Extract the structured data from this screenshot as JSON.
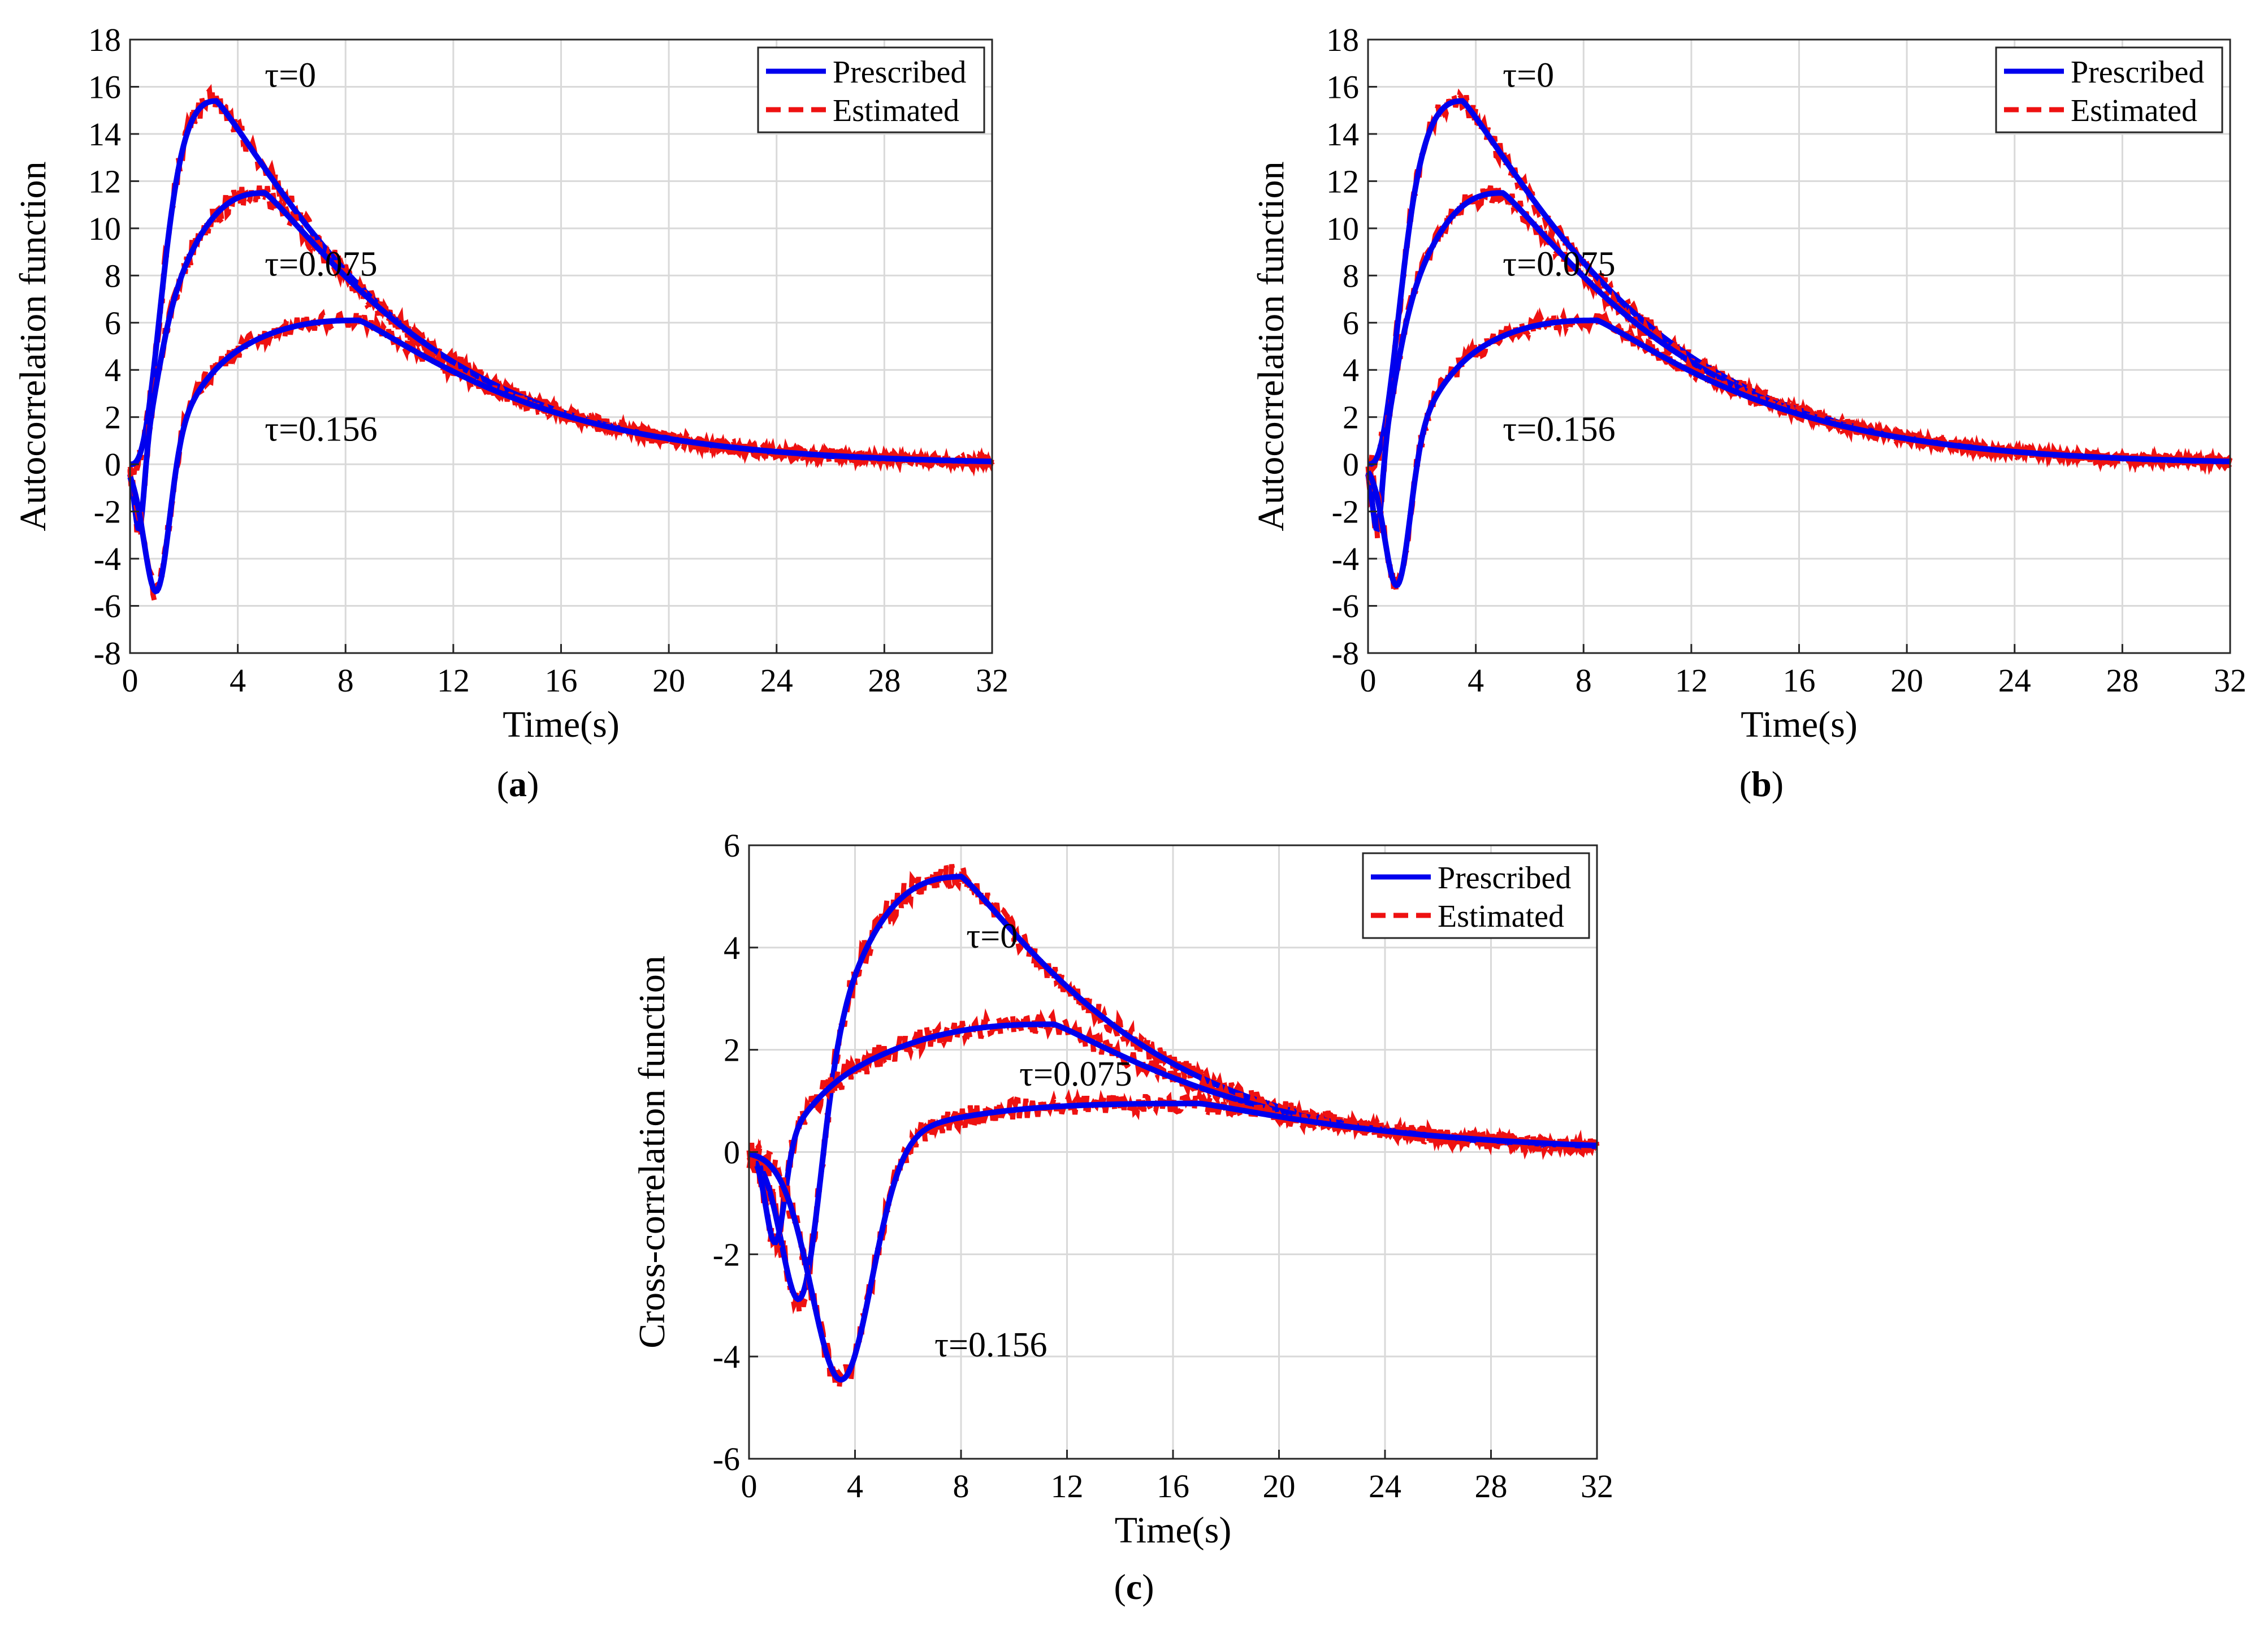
{
  "figure": {
    "captions": [
      {
        "open": "(",
        "letter": "a",
        "close": ")"
      },
      {
        "open": "(",
        "letter": "b",
        "close": ")"
      },
      {
        "open": "(",
        "letter": "c",
        "close": ")"
      }
    ]
  },
  "chart_data": [
    {
      "type": "line",
      "id": "a",
      "xlabel": "Time(s)",
      "ylabel": "Autocorrelation function",
      "xlim": [
        0,
        32
      ],
      "ylim": [
        -8,
        18
      ],
      "xticks": [
        0,
        4,
        8,
        12,
        16,
        20,
        24,
        28,
        32
      ],
      "yticks": [
        -8,
        -6,
        -4,
        -2,
        0,
        2,
        4,
        6,
        8,
        10,
        12,
        14,
        16,
        18
      ],
      "grid": true,
      "legend": {
        "position": "top-right",
        "entries": [
          "Prescribed",
          "Estimated"
        ]
      },
      "colors": {
        "prescribed": "#0000ee",
        "estimated": "#ee1111"
      },
      "curve_params": [
        {
          "label": "τ=0",
          "A": 15.4,
          "tpeak": 3.2,
          "tau2": 6.0,
          "dip": 0,
          "tdip": 0.5,
          "dipw": 0.3,
          "noise": 0.55,
          "label_x": 5.0,
          "label_y": 16.0
        },
        {
          "label": "τ=0.075",
          "A": 11.5,
          "tpeak": 5.0,
          "tau2": 6.0,
          "dip": -3.0,
          "tdip": 0.35,
          "dipw": 0.25,
          "noise": 0.55,
          "label_x": 5.0,
          "label_y": 8.0
        },
        {
          "label": "τ=0.156",
          "A": 6.1,
          "tpeak": 8.5,
          "tau2": 6.0,
          "dip": -5.8,
          "tdip": 1.0,
          "dipw": 0.65,
          "noise": 0.45,
          "label_x": 5.0,
          "label_y": 1.0
        }
      ]
    },
    {
      "type": "line",
      "id": "b",
      "xlabel": "Time(s)",
      "ylabel": "Autocorrelation function",
      "xlim": [
        0,
        32
      ],
      "ylim": [
        -8,
        18
      ],
      "xticks": [
        0,
        4,
        8,
        12,
        16,
        20,
        24,
        28,
        32
      ],
      "yticks": [
        -8,
        -6,
        -4,
        -2,
        0,
        2,
        4,
        6,
        8,
        10,
        12,
        14,
        16,
        18
      ],
      "grid": true,
      "legend": {
        "position": "top-right",
        "entries": [
          "Prescribed",
          "Estimated"
        ]
      },
      "colors": {
        "prescribed": "#0000ee",
        "estimated": "#ee1111"
      },
      "curve_params": [
        {
          "label": "τ=0",
          "A": 15.4,
          "tpeak": 3.5,
          "tau2": 6.0,
          "dip": 0,
          "tdip": 0.5,
          "dipw": 0.3,
          "noise": 0.5,
          "label_x": 5.0,
          "label_y": 16.0
        },
        {
          "label": "τ=0.075",
          "A": 11.5,
          "tpeak": 5.0,
          "tau2": 6.0,
          "dip": -3.0,
          "tdip": 0.35,
          "dipw": 0.25,
          "noise": 0.5,
          "label_x": 5.0,
          "label_y": 8.0
        },
        {
          "label": "τ=0.156",
          "A": 6.1,
          "tpeak": 8.5,
          "tau2": 6.0,
          "dip": -5.6,
          "tdip": 1.1,
          "dipw": 0.65,
          "noise": 0.45,
          "label_x": 5.0,
          "label_y": 1.0
        }
      ]
    },
    {
      "type": "line",
      "id": "c",
      "xlabel": "Time(s)",
      "ylabel": "Cross-correlation function",
      "xlim": [
        0,
        32
      ],
      "ylim": [
        -6,
        6
      ],
      "xticks": [
        0,
        4,
        8,
        12,
        16,
        20,
        24,
        28,
        32
      ],
      "yticks": [
        -6,
        -4,
        -2,
        0,
        2,
        4,
        6
      ],
      "grid": true,
      "legend": {
        "position": "top-right",
        "entries": [
          "Prescribed",
          "Estimated"
        ]
      },
      "colors": {
        "prescribed": "#0000ee",
        "estimated": "#ee1111"
      },
      "curve_params": [
        {
          "label": "τ=0",
          "A": 5.4,
          "tpeak": 8.0,
          "tau2": 6.0,
          "dip": -3.7,
          "tdip": 2.0,
          "dipw": 1.0,
          "noise": 0.35,
          "label_x": 8.2,
          "label_y": 4.0
        },
        {
          "label": "τ=0.075",
          "A": 2.5,
          "tpeak": 11.5,
          "tau2": 6.5,
          "dip": -1.9,
          "tdip": 1.0,
          "dipw": 0.5,
          "noise": 0.3,
          "label_x": 10.2,
          "label_y": 1.3
        },
        {
          "label": "τ=0.156",
          "A": 0.95,
          "tpeak": 17.0,
          "tau2": 7.0,
          "dip": -4.6,
          "tdip": 3.5,
          "dipw": 1.6,
          "noise": 0.3,
          "label_x": 7.0,
          "label_y": -4.0
        }
      ]
    }
  ]
}
